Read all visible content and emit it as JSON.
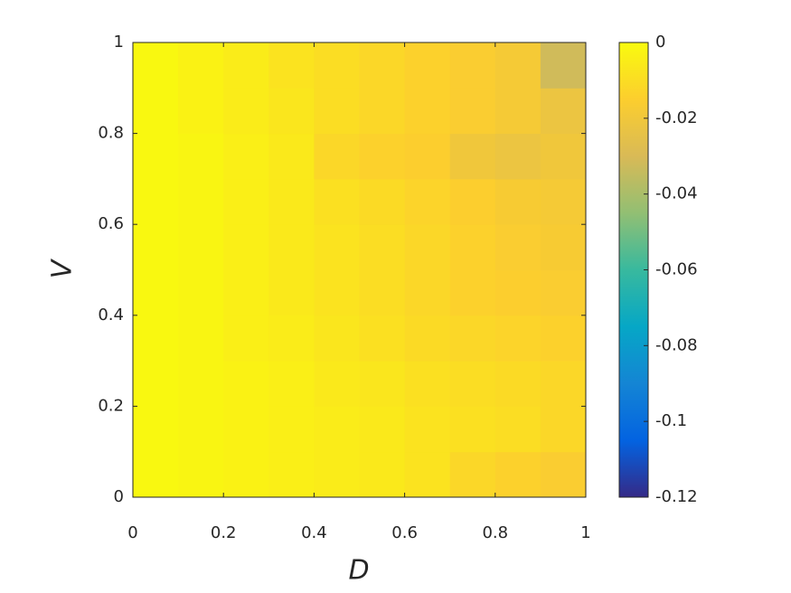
{
  "chart_data": {
    "type": "heatmap",
    "xlabel": "D",
    "ylabel": "V",
    "x": [
      0.05,
      0.15,
      0.25,
      0.35,
      0.45,
      0.55,
      0.65,
      0.75,
      0.85,
      0.95
    ],
    "y": [
      0.05,
      0.15,
      0.25,
      0.35,
      0.45,
      0.55,
      0.65,
      0.75,
      0.85,
      0.95
    ],
    "z": [
      [
        -0.001,
        -0.002,
        -0.003,
        -0.004,
        -0.005,
        -0.006,
        -0.008,
        -0.012,
        -0.014,
        -0.016
      ],
      [
        -0.001,
        -0.002,
        -0.003,
        -0.004,
        -0.005,
        -0.006,
        -0.008,
        -0.009,
        -0.01,
        -0.012
      ],
      [
        -0.001,
        -0.002,
        -0.003,
        -0.004,
        -0.006,
        -0.007,
        -0.009,
        -0.01,
        -0.011,
        -0.012
      ],
      [
        -0.001,
        -0.002,
        -0.004,
        -0.005,
        -0.007,
        -0.009,
        -0.011,
        -0.012,
        -0.013,
        -0.014
      ],
      [
        -0.001,
        -0.002,
        -0.004,
        -0.006,
        -0.008,
        -0.01,
        -0.012,
        -0.014,
        -0.015,
        -0.016
      ],
      [
        -0.001,
        -0.002,
        -0.004,
        -0.006,
        -0.008,
        -0.01,
        -0.012,
        -0.014,
        -0.016,
        -0.017
      ],
      [
        -0.001,
        -0.002,
        -0.004,
        -0.006,
        -0.009,
        -0.011,
        -0.013,
        -0.015,
        -0.017,
        -0.018
      ],
      [
        -0.001,
        -0.002,
        -0.004,
        -0.006,
        -0.012,
        -0.014,
        -0.015,
        -0.02,
        -0.022,
        -0.02
      ],
      [
        -0.001,
        -0.003,
        -0.005,
        -0.007,
        -0.01,
        -0.012,
        -0.014,
        -0.016,
        -0.018,
        -0.022
      ],
      [
        -0.001,
        -0.003,
        -0.005,
        -0.008,
        -0.01,
        -0.012,
        -0.014,
        -0.016,
        -0.018,
        -0.032
      ]
    ],
    "colormap": "parula",
    "clim": [
      -0.12,
      0
    ],
    "cticks": [
      -0.12,
      -0.1,
      -0.08,
      -0.06,
      -0.04,
      -0.02,
      0
    ],
    "xlim": [
      0,
      1
    ],
    "xticks": [
      0,
      0.2,
      0.4,
      0.6,
      0.8,
      1
    ],
    "ylim": [
      0,
      1
    ],
    "yticks": [
      0,
      0.2,
      0.4,
      0.6,
      0.8,
      1
    ]
  }
}
